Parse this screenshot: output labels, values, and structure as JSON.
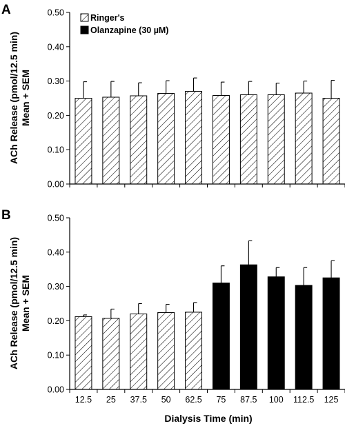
{
  "legend": {
    "ringers_label": "Ringer's",
    "olanzapine_label": "Olanzapine (30 µM)"
  },
  "colors": {
    "ringers": "#ffffff",
    "ringers_hatch": "#000000",
    "olanzapine": "#000000"
  },
  "chart_data": [
    {
      "type": "bar",
      "panel_label": "A",
      "ylabel_line1": "ACh Release (pmol/12.5 min)",
      "ylabel_line2": "Mean + SEM",
      "ylim": [
        0,
        0.5
      ],
      "yticks": [
        "0.00",
        "0.10",
        "0.20",
        "0.30",
        "0.40",
        "0.50"
      ],
      "categories": [
        "12.5",
        "25",
        "37.5",
        "50",
        "62.5",
        "75",
        "87.5",
        "100",
        "112.5",
        "125"
      ],
      "show_x_tick_labels": false,
      "series": [
        {
          "name": "Ringer's",
          "treatment": "ringers",
          "values": [
            0.25,
            0.253,
            0.257,
            0.264,
            0.27,
            0.258,
            0.26,
            0.26,
            0.265,
            0.25
          ],
          "sem": [
            0.048,
            0.046,
            0.038,
            0.037,
            0.039,
            0.039,
            0.039,
            0.034,
            0.035,
            0.052
          ]
        }
      ],
      "legend_placement": "top-left"
    },
    {
      "type": "bar",
      "panel_label": "B",
      "ylabel_line1": "ACh Release (pmol/12.5 min)",
      "ylabel_line2": "Mean + SEM",
      "xlabel": "Dialysis Time (min)",
      "ylim": [
        0,
        0.5
      ],
      "yticks": [
        "0.00",
        "0.10",
        "0.20",
        "0.30",
        "0.40",
        "0.50"
      ],
      "categories": [
        "12.5",
        "25",
        "37.5",
        "50",
        "62.5",
        "75",
        "87.5",
        "100",
        "112.5",
        "125"
      ],
      "show_x_tick_labels": true,
      "treatments": [
        "ringers",
        "ringers",
        "ringers",
        "ringers",
        "ringers",
        "olanzapine",
        "olanzapine",
        "olanzapine",
        "olanzapine",
        "olanzapine"
      ],
      "series": [
        {
          "values": [
            0.212,
            0.207,
            0.22,
            0.224,
            0.225,
            0.31,
            0.363,
            0.328,
            0.303,
            0.325
          ],
          "sem": [
            0.005,
            0.027,
            0.03,
            0.024,
            0.028,
            0.05,
            0.07,
            0.027,
            0.052,
            0.05
          ]
        }
      ]
    }
  ]
}
